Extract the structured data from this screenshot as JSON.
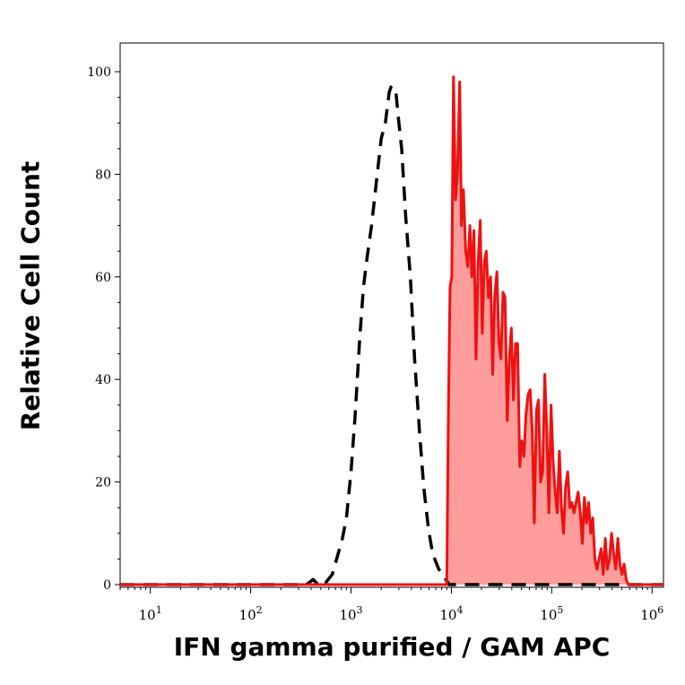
{
  "chart_data": {
    "type": "area",
    "title": "",
    "xlabel": "IFN gamma purified / GAM APC",
    "ylabel": "Relative Cell Count",
    "x_scale": "log",
    "xlim": [
      5,
      1300000
    ],
    "ylim": [
      0,
      100
    ],
    "y_ticks": [
      0,
      20,
      40,
      60,
      80,
      100
    ],
    "x_ticks": [
      {
        "value": 10,
        "base": "10",
        "exp": "1"
      },
      {
        "value": 100,
        "base": "10",
        "exp": "2"
      },
      {
        "value": 1000,
        "base": "10",
        "exp": "3"
      },
      {
        "value": 10000,
        "base": "10",
        "exp": "4"
      },
      {
        "value": 100000,
        "base": "10",
        "exp": "5"
      },
      {
        "value": 1000000,
        "base": "10",
        "exp": "6"
      }
    ],
    "grid": false,
    "series": [
      {
        "style": "dashed",
        "color": "#000000",
        "fill": "none",
        "points": [
          [
            5,
            0
          ],
          [
            300,
            0
          ],
          [
            360,
            0
          ],
          [
            420,
            1
          ],
          [
            470,
            0
          ],
          [
            540,
            0
          ],
          [
            650,
            2
          ],
          [
            720,
            5
          ],
          [
            820,
            9
          ],
          [
            900,
            13
          ],
          [
            1000,
            22
          ],
          [
            1100,
            33
          ],
          [
            1220,
            48
          ],
          [
            1330,
            58
          ],
          [
            1450,
            64
          ],
          [
            1600,
            70
          ],
          [
            1800,
            79
          ],
          [
            2000,
            87
          ],
          [
            2200,
            90
          ],
          [
            2400,
            96
          ],
          [
            2500,
            97
          ],
          [
            2600,
            96
          ],
          [
            2800,
            96
          ],
          [
            3000,
            90
          ],
          [
            3200,
            85
          ],
          [
            3500,
            72
          ],
          [
            3900,
            60
          ],
          [
            4300,
            44
          ],
          [
            4800,
            30
          ],
          [
            5300,
            19
          ],
          [
            5900,
            11
          ],
          [
            6500,
            6
          ],
          [
            7500,
            3
          ],
          [
            8800,
            1
          ],
          [
            9500,
            0
          ],
          [
            1300000,
            0
          ]
        ]
      },
      {
        "style": "solid",
        "color": "#ee1111",
        "fill": "#ff9c9c",
        "points": [
          [
            5,
            0
          ],
          [
            9000,
            0
          ],
          [
            9300,
            30
          ],
          [
            9700,
            58
          ],
          [
            10100,
            60
          ],
          [
            10500,
            99
          ],
          [
            11000,
            75
          ],
          [
            11500,
            80
          ],
          [
            12100,
            98
          ],
          [
            12600,
            70
          ],
          [
            13200,
            77
          ],
          [
            13900,
            65
          ],
          [
            14600,
            62
          ],
          [
            15300,
            70
          ],
          [
            16000,
            60
          ],
          [
            16800,
            69
          ],
          [
            17600,
            44
          ],
          [
            18500,
            63
          ],
          [
            19400,
            71
          ],
          [
            20300,
            49
          ],
          [
            21300,
            63
          ],
          [
            22300,
            65
          ],
          [
            23400,
            56
          ],
          [
            24600,
            60
          ],
          [
            25800,
            41
          ],
          [
            27000,
            56
          ],
          [
            28400,
            61
          ],
          [
            29800,
            47
          ],
          [
            31200,
            44
          ],
          [
            32700,
            57
          ],
          [
            34300,
            56
          ],
          [
            36000,
            32
          ],
          [
            37800,
            44
          ],
          [
            39600,
            50
          ],
          [
            41600,
            36
          ],
          [
            43600,
            47
          ],
          [
            45700,
            47
          ],
          [
            48000,
            23
          ],
          [
            50300,
            28
          ],
          [
            52800,
            25
          ],
          [
            55400,
            33
          ],
          [
            58100,
            37
          ],
          [
            61000,
            38
          ],
          [
            64000,
            30
          ],
          [
            67100,
            12
          ],
          [
            70400,
            34
          ],
          [
            73800,
            36
          ],
          [
            77400,
            20
          ],
          [
            81200,
            22
          ],
          [
            85200,
            41
          ],
          [
            89400,
            30
          ],
          [
            93800,
            14
          ],
          [
            98400,
            35
          ],
          [
            103200,
            24
          ],
          [
            108300,
            18
          ],
          [
            113600,
            14
          ],
          [
            119200,
            26
          ],
          [
            125000,
            15
          ],
          [
            131200,
            10
          ],
          [
            137600,
            19
          ],
          [
            144400,
            22
          ],
          [
            151500,
            15
          ],
          [
            158900,
            16
          ],
          [
            166700,
            14
          ],
          [
            174900,
            16
          ],
          [
            183500,
            18
          ],
          [
            192500,
            14
          ],
          [
            201900,
            8
          ],
          [
            211800,
            17
          ],
          [
            222200,
            12
          ],
          [
            233100,
            16
          ],
          [
            244600,
            10
          ],
          [
            256600,
            13
          ],
          [
            269200,
            5
          ],
          [
            282400,
            3
          ],
          [
            296300,
            5
          ],
          [
            310800,
            7
          ],
          [
            326100,
            2
          ],
          [
            342100,
            9
          ],
          [
            358900,
            3
          ],
          [
            376500,
            5
          ],
          [
            395000,
            10
          ],
          [
            414400,
            6
          ],
          [
            434800,
            3
          ],
          [
            456100,
            9
          ],
          [
            478500,
            4
          ],
          [
            502000,
            2
          ],
          [
            526700,
            4
          ],
          [
            552600,
            1
          ],
          [
            579700,
            0
          ],
          [
            1300000,
            0
          ]
        ]
      }
    ]
  }
}
